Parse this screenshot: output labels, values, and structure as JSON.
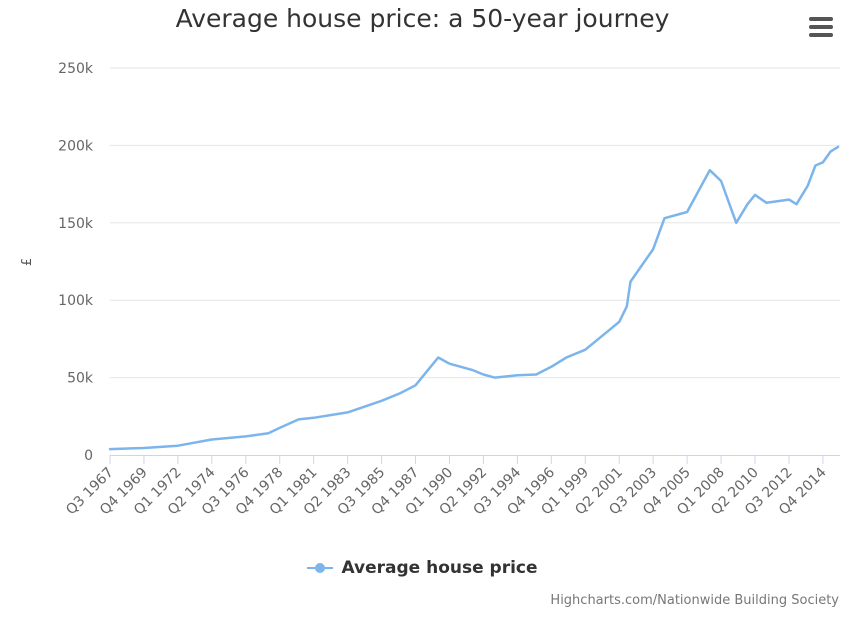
{
  "chart_data": {
    "type": "line",
    "title": "Average house price: a 50-year journey",
    "ylabel": "£",
    "xlabel": "",
    "ylim": [
      0,
      250000
    ],
    "yticks": [
      0,
      50000,
      100000,
      150000,
      200000,
      250000
    ],
    "ytick_labels": [
      "0",
      "50k",
      "100k",
      "150k",
      "200k",
      "250k"
    ],
    "grid": true,
    "legend_position": "bottom",
    "x_tick_labels": [
      "Q3 1967",
      "Q4 1969",
      "Q1 1972",
      "Q2 1974",
      "Q3 1976",
      "Q4 1978",
      "Q1 1981",
      "Q2 1983",
      "Q3 1985",
      "Q4 1987",
      "Q1 1990",
      "Q2 1992",
      "Q3 1994",
      "Q4 1996",
      "Q1 1999",
      "Q2 2001",
      "Q3 2003",
      "Q4 2005",
      "Q1 2008",
      "Q2 2010",
      "Q3 2012",
      "Q4 2014"
    ],
    "series": [
      {
        "name": "Average house price",
        "color": "#7cb5ec",
        "points": [
          [
            "Q3 1967",
            3800
          ],
          [
            "Q4 1969",
            4500
          ],
          [
            "Q1 1972",
            6000
          ],
          [
            "Q2 1974",
            10000
          ],
          [
            "Q3 1976",
            12000
          ],
          [
            "Q1 1978",
            14000
          ],
          [
            "Q4 1978",
            17500
          ],
          [
            "Q1 1980",
            23000
          ],
          [
            "Q1 1981",
            24000
          ],
          [
            "Q2 1983",
            27500
          ],
          [
            "Q3 1985",
            35000
          ],
          [
            "Q4 1986",
            40000
          ],
          [
            "Q4 1987",
            45000
          ],
          [
            "Q4 1988",
            57000
          ],
          [
            "Q2 1989",
            63000
          ],
          [
            "Q1 1990",
            59000
          ],
          [
            "Q3 1991",
            55000
          ],
          [
            "Q2 1992",
            52000
          ],
          [
            "Q1 1993",
            50000
          ],
          [
            "Q3 1994",
            51500
          ],
          [
            "Q4 1995",
            52000
          ],
          [
            "Q4 1996",
            57000
          ],
          [
            "Q4 1997",
            63000
          ],
          [
            "Q1 1999",
            68000
          ],
          [
            "Q3 2000",
            80000
          ],
          [
            "Q2 2001",
            86000
          ],
          [
            "Q4 2001",
            96000
          ],
          [
            "Q1 2002",
            112000
          ],
          [
            "Q3 2003",
            133000
          ],
          [
            "Q2 2004",
            153000
          ],
          [
            "Q4 2005",
            157000
          ],
          [
            "Q2 2006",
            166000
          ],
          [
            "Q4 2006",
            175000
          ],
          [
            "Q2 2007",
            184000
          ],
          [
            "Q1 2008",
            177000
          ],
          [
            "Q1 2009",
            150000
          ],
          [
            "Q4 2009",
            162000
          ],
          [
            "Q2 2010",
            168000
          ],
          [
            "Q1 2011",
            163000
          ],
          [
            "Q3 2012",
            165000
          ],
          [
            "Q1 2013",
            162000
          ],
          [
            "Q4 2013",
            174000
          ],
          [
            "Q2 2014",
            187000
          ],
          [
            "Q4 2014",
            189000
          ],
          [
            "Q2 2015",
            196000
          ],
          [
            "Q4 2015",
            199000
          ]
        ]
      }
    ]
  },
  "menu": {
    "icon": "hamburger-menu-icon"
  },
  "credits": "Highcharts.com/Nationwide Building Society"
}
